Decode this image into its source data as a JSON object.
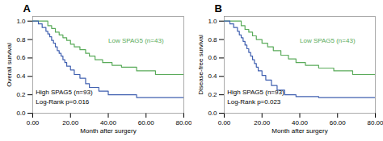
{
  "chart_data": [
    {
      "type": "line",
      "title": "A",
      "xlabel": "Month after surgery",
      "ylabel": "Overall survival",
      "xlim": [
        0,
        80
      ],
      "ylim": [
        0.0,
        1.05
      ],
      "xticks": [
        {
          "value": 0,
          "label": "0.00"
        },
        {
          "value": 20,
          "label": "20.00"
        },
        {
          "value": 40,
          "label": "40.00"
        },
        {
          "value": 60,
          "label": "60.00"
        },
        {
          "value": 80,
          "label": "80.00"
        }
      ],
      "yticks": [
        {
          "value": 0.0,
          "label": "0.0"
        },
        0.2,
        0.4,
        0.6,
        0.8,
        {
          "value": 1.0,
          "label": "1.0"
        }
      ],
      "series": [
        {
          "name": "Low SPAG5 (n=43)",
          "color": "#5aab5a",
          "type": "step",
          "x": [
            0,
            6,
            8,
            10,
            12,
            14,
            16,
            18,
            20,
            22,
            25,
            28,
            30,
            33,
            37,
            42,
            47,
            55,
            65,
            80
          ],
          "values": [
            1.0,
            1.0,
            0.95,
            0.92,
            0.88,
            0.85,
            0.82,
            0.79,
            0.75,
            0.72,
            0.69,
            0.65,
            0.62,
            0.58,
            0.55,
            0.52,
            0.5,
            0.46,
            0.42,
            0.4
          ]
        },
        {
          "name": "High SPAG5 (n=93)",
          "color": "#4060b0",
          "type": "step",
          "x": [
            0,
            3,
            5,
            7,
            8,
            9,
            10,
            11,
            12,
            13,
            14,
            15,
            16,
            17,
            18,
            20,
            22,
            25,
            28,
            30,
            35,
            40,
            55,
            80
          ],
          "values": [
            1.0,
            0.97,
            0.93,
            0.89,
            0.86,
            0.83,
            0.79,
            0.76,
            0.72,
            0.68,
            0.65,
            0.62,
            0.58,
            0.55,
            0.51,
            0.47,
            0.42,
            0.38,
            0.32,
            0.28,
            0.24,
            0.2,
            0.17,
            0.17
          ]
        }
      ],
      "annotations": [
        "Log-Rank p=0.016"
      ]
    },
    {
      "type": "line",
      "title": "B",
      "xlabel": "Month after surgery",
      "ylabel": "Disease-free survival",
      "xlim": [
        0,
        80
      ],
      "ylim": [
        0.0,
        1.05
      ],
      "xticks": [
        {
          "value": 0,
          "label": "0.00"
        },
        {
          "value": 20,
          "label": "20.00"
        },
        {
          "value": 40,
          "label": "40.00"
        },
        {
          "value": 60,
          "label": "60.00"
        },
        {
          "value": 80,
          "label": "80.00"
        }
      ],
      "yticks": [
        {
          "value": 0.0,
          "label": "0.0"
        },
        0.2,
        0.4,
        0.6,
        0.8,
        {
          "value": 1.0,
          "label": "1.0"
        }
      ],
      "series": [
        {
          "name": "Low SPAG5 (n=43)",
          "color": "#5aab5a",
          "type": "step",
          "x": [
            0,
            7,
            9,
            11,
            13,
            15,
            17,
            20,
            23,
            26,
            30,
            34,
            38,
            43,
            50,
            58,
            68,
            80
          ],
          "values": [
            1.0,
            1.0,
            0.95,
            0.91,
            0.88,
            0.84,
            0.8,
            0.76,
            0.72,
            0.68,
            0.63,
            0.59,
            0.55,
            0.52,
            0.49,
            0.46,
            0.42,
            0.4
          ]
        },
        {
          "name": "High SPAG5 (n=93)",
          "color": "#4060b0",
          "type": "step",
          "x": [
            0,
            3,
            5,
            7,
            8,
            9,
            10,
            11,
            12,
            13,
            14,
            15,
            16,
            17,
            18,
            20,
            22,
            25,
            28,
            32,
            38,
            50,
            80
          ],
          "values": [
            1.0,
            0.97,
            0.93,
            0.89,
            0.85,
            0.82,
            0.78,
            0.74,
            0.7,
            0.66,
            0.62,
            0.58,
            0.54,
            0.5,
            0.46,
            0.41,
            0.36,
            0.3,
            0.25,
            0.2,
            0.18,
            0.17,
            0.17
          ]
        }
      ],
      "annotations": [
        "Log-Rank p=0.023"
      ]
    }
  ]
}
